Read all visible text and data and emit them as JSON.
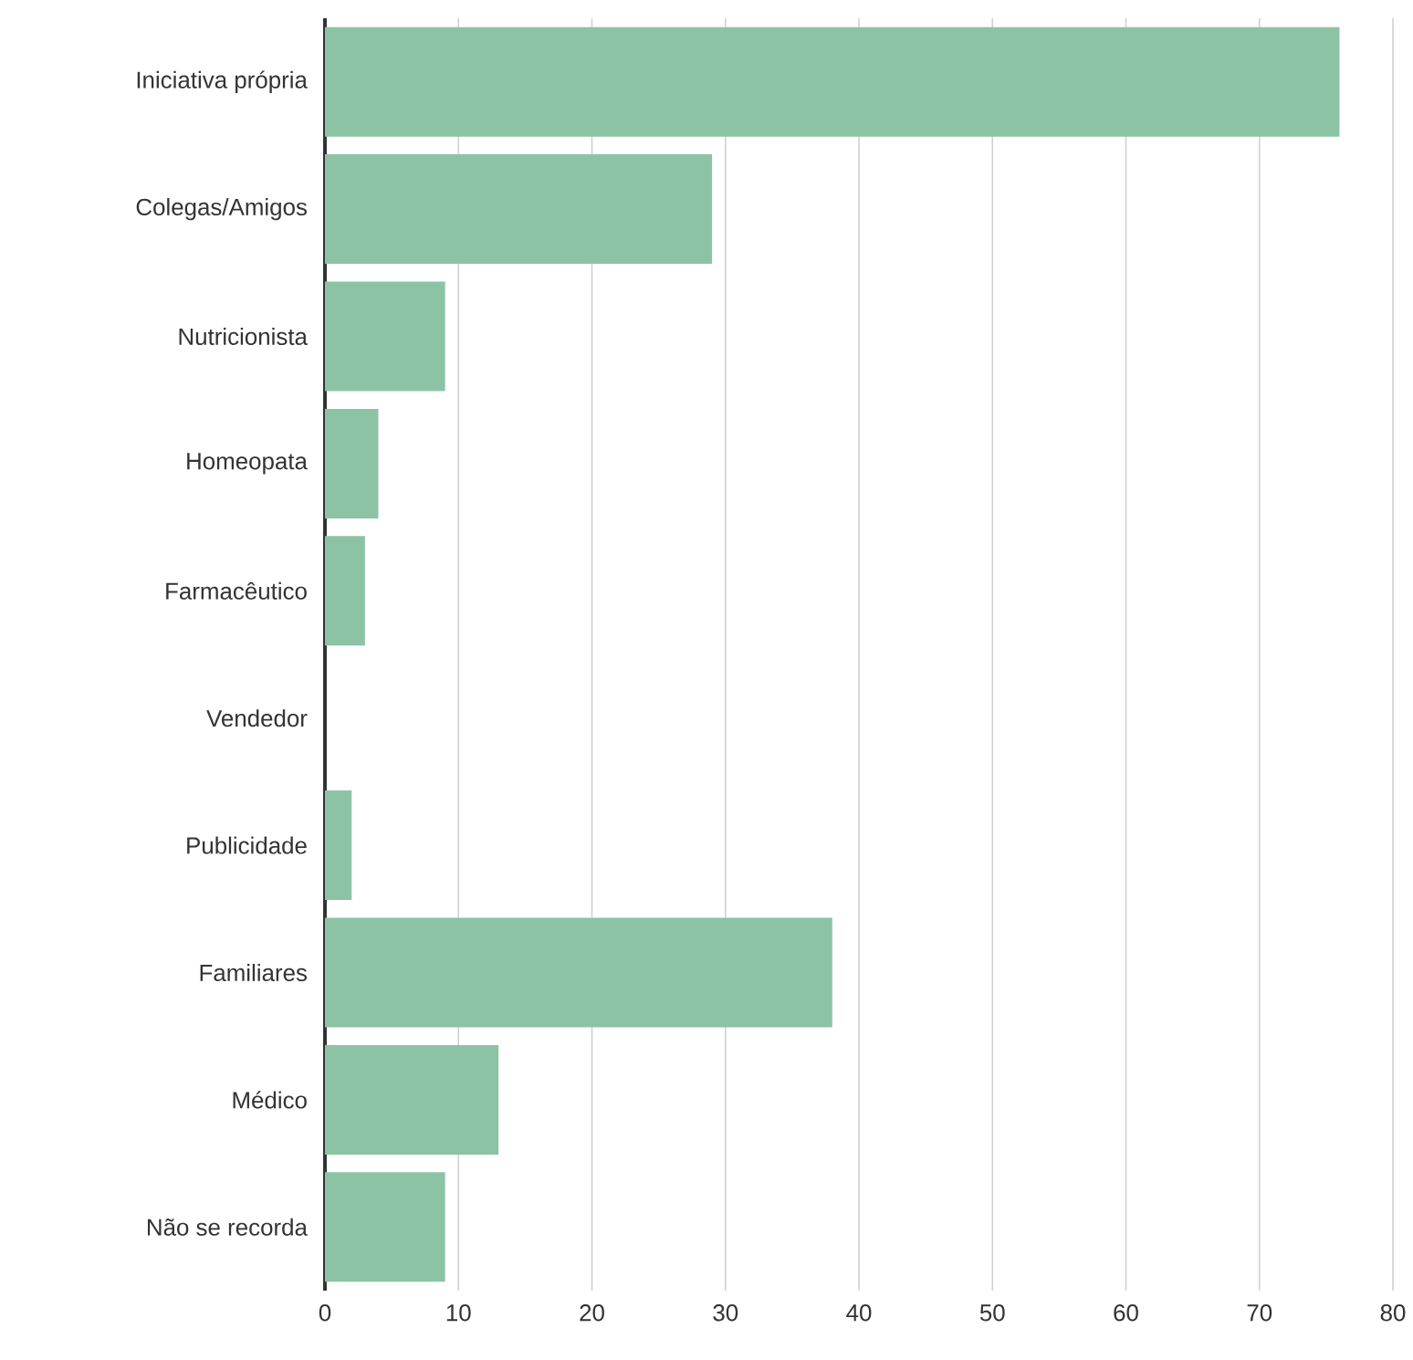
{
  "chart_data": {
    "type": "bar",
    "orientation": "horizontal",
    "categories": [
      "Iniciativa própria",
      "Colegas/Amigos",
      "Nutricionista",
      "Homeopata",
      "Farmacêutico",
      "Vendedor",
      "Publicidade",
      "Familiares",
      "Médico",
      "Não se recorda"
    ],
    "values": [
      76,
      29,
      9,
      4,
      3,
      0,
      2,
      38,
      13,
      9
    ],
    "color": "#8cc3a5",
    "xlim": [
      0,
      80
    ],
    "xticks": [
      0,
      10,
      20,
      30,
      40,
      50,
      60,
      70,
      80
    ],
    "grid": "x"
  }
}
